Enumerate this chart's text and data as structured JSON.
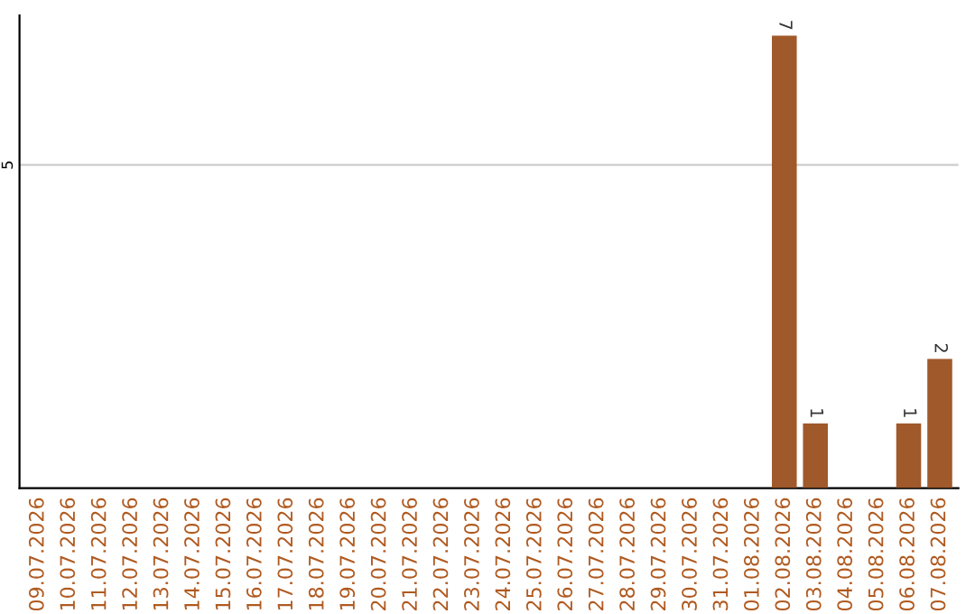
{
  "chart_data": {
    "type": "bar",
    "categories": [
      "09.07.2026",
      "10.07.2026",
      "11.07.2026",
      "12.07.2026",
      "13.07.2026",
      "14.07.2026",
      "15.07.2026",
      "16.07.2026",
      "17.07.2026",
      "18.07.2026",
      "19.07.2026",
      "20.07.2026",
      "21.07.2026",
      "22.07.2026",
      "23.07.2026",
      "24.07.2026",
      "25.07.2026",
      "26.07.2026",
      "27.07.2026",
      "28.07.2026",
      "29.07.2026",
      "30.07.2026",
      "31.07.2026",
      "01.08.2026",
      "02.08.2026",
      "03.08.2026",
      "04.08.2026",
      "05.08.2026",
      "06.08.2026",
      "07.08.2026"
    ],
    "values": [
      null,
      null,
      null,
      null,
      null,
      null,
      null,
      null,
      null,
      null,
      null,
      null,
      null,
      null,
      null,
      null,
      null,
      null,
      null,
      null,
      null,
      null,
      null,
      null,
      7,
      1,
      null,
      null,
      1,
      2
    ],
    "color": "#a0592a",
    "ref_lines": [
      {
        "axis": "y",
        "value": 5,
        "label": "5",
        "color": "#cccccc"
      }
    ],
    "data_labels": true
  }
}
